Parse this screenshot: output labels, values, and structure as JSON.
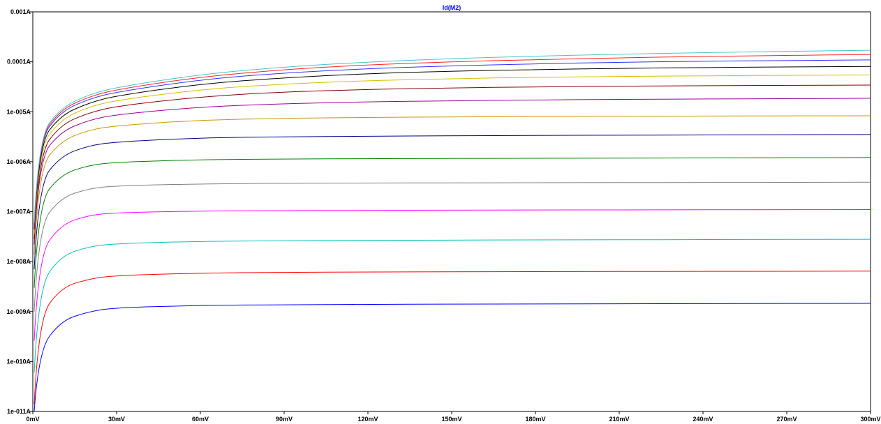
{
  "chart_data": {
    "type": "line",
    "title": "Id(M2)",
    "title_color": "#0000ff",
    "xlabel": "",
    "ylabel": "",
    "xlim": [
      0,
      0.3
    ],
    "ylim": [
      1e-11,
      0.001
    ],
    "yscale": "log",
    "grid": false,
    "legend": "none",
    "x_ticks": [
      {
        "v": 0,
        "label": "0mV"
      },
      {
        "v": 0.03,
        "label": "30mV"
      },
      {
        "v": 0.06,
        "label": "60mV"
      },
      {
        "v": 0.09,
        "label": "90mV"
      },
      {
        "v": 0.12,
        "label": "120mV"
      },
      {
        "v": 0.15,
        "label": "150mV"
      },
      {
        "v": 0.18,
        "label": "180mV"
      },
      {
        "v": 0.21,
        "label": "210mV"
      },
      {
        "v": 0.24,
        "label": "240mV"
      },
      {
        "v": 0.27,
        "label": "270mV"
      },
      {
        "v": 0.3,
        "label": "300mV"
      }
    ],
    "y_ticks": [
      {
        "v": 0.001,
        "label": "0.001A"
      },
      {
        "v": 0.0001,
        "label": "0.0001A"
      },
      {
        "v": 1e-05,
        "label": "1e-005A"
      },
      {
        "v": 1e-06,
        "label": "1e-006A"
      },
      {
        "v": 1e-07,
        "label": "1e-007A"
      },
      {
        "v": 1e-08,
        "label": "1e-008A"
      },
      {
        "v": 1e-09,
        "label": "1e-009A"
      },
      {
        "v": 1e-10,
        "label": "1e-010A"
      },
      {
        "v": 1e-11,
        "label": "1e-011A"
      }
    ],
    "x": [
      0.002,
      0.01,
      0.02,
      0.03,
      0.06,
      0.09,
      0.12,
      0.15,
      0.18,
      0.21,
      0.24,
      0.27,
      0.3
    ],
    "series": [
      {
        "color": "#0000ff",
        "values": [
          1.6e-10,
          6.5e-10,
          1e-09,
          1.2e-09,
          1.33e-09,
          1.37e-09,
          1.39e-09,
          1.41e-09,
          1.42e-09,
          1.43e-09,
          1.44e-09,
          1.45e-09,
          1.46e-09
        ]
      },
      {
        "color": "#ff0000",
        "values": [
          7e-10,
          3e-09,
          4.5e-09,
          5.3e-09,
          5.9e-09,
          6.1e-09,
          6.2e-09,
          6.25e-09,
          6.3e-09,
          6.35e-09,
          6.38e-09,
          6.4e-09,
          6.45e-09
        ]
      },
      {
        "color": "#00c0c0",
        "values": [
          3e-09,
          1.3e-08,
          2e-08,
          2.3e-08,
          2.55e-08,
          2.62e-08,
          2.66e-08,
          2.7e-08,
          2.72e-08,
          2.74e-08,
          2.76e-08,
          2.78e-08,
          2.8e-08
        ]
      },
      {
        "color": "#ff00ff",
        "values": [
          1.3e-08,
          5.5e-08,
          8.5e-08,
          9.6e-08,
          1.03e-07,
          1.05e-07,
          1.06e-07,
          1.07e-07,
          1.08e-07,
          1.085e-07,
          1.09e-07,
          1.095e-07,
          1.1e-07
        ]
      },
      {
        "color": "#808080",
        "values": [
          5e-08,
          1.9e-07,
          2.9e-07,
          3.3e-07,
          3.6e-07,
          3.7e-07,
          3.75e-07,
          3.78e-07,
          3.8e-07,
          3.82e-07,
          3.84e-07,
          3.86e-07,
          3.88e-07
        ]
      },
      {
        "color": "#008000",
        "values": [
          1.5e-07,
          5.5e-07,
          8.5e-07,
          9.8e-07,
          1.1e-06,
          1.13e-06,
          1.15e-06,
          1.16e-06,
          1.17e-06,
          1.18e-06,
          1.19e-06,
          1.2e-06,
          1.21e-06
        ]
      },
      {
        "color": "#00008b",
        "values": [
          3.5e-07,
          1.3e-06,
          2.1e-06,
          2.5e-06,
          3e-06,
          3.15e-06,
          3.25e-06,
          3.3e-06,
          3.35e-06,
          3.4e-06,
          3.43e-06,
          3.47e-06,
          3.5e-06
        ]
      },
      {
        "color": "#c89600",
        "values": [
          7e-07,
          2.6e-06,
          4.3e-06,
          5.3e-06,
          6.8e-06,
          7.4e-06,
          7.7e-06,
          7.9e-06,
          8e-06,
          8.1e-06,
          8.2e-06,
          8.25e-06,
          8.3e-06
        ]
      },
      {
        "color": "#990099",
        "values": [
          1.1e-06,
          4e-06,
          6.8e-06,
          8.8e-06,
          1.25e-05,
          1.45e-05,
          1.58e-05,
          1.66e-05,
          1.72e-05,
          1.77e-05,
          1.8e-05,
          1.83e-05,
          1.86e-05
        ]
      },
      {
        "color": "#8b0000",
        "values": [
          1.4e-06,
          5.5e-06,
          9.5e-06,
          1.3e-05,
          2e-05,
          2.5e-05,
          2.8e-05,
          3e-05,
          3.15e-05,
          3.25e-05,
          3.33e-05,
          3.38e-05,
          3.42e-05
        ]
      },
      {
        "color": "#d4c000",
        "values": [
          1.8e-06,
          7e-06,
          1.25e-05,
          1.7e-05,
          2.8e-05,
          3.6e-05,
          4.2e-05,
          4.6e-05,
          4.9e-05,
          5.1e-05,
          5.25e-05,
          5.35e-05,
          5.45e-05
        ]
      },
      {
        "color": "#000000",
        "values": [
          2.2e-06,
          8.5e-06,
          1.5e-05,
          2.1e-05,
          3.6e-05,
          4.8e-05,
          5.8e-05,
          6.5e-05,
          7e-05,
          7.4e-05,
          7.7e-05,
          7.9e-05,
          8.1e-05
        ]
      },
      {
        "color": "#3030ff",
        "values": [
          2.6e-06,
          1e-05,
          1.8e-05,
          2.5e-05,
          4.4e-05,
          6e-05,
          7.3e-05,
          8.3e-05,
          9.1e-05,
          9.8e-05,
          0.000103,
          0.000106,
          0.000109
        ]
      },
      {
        "color": "#ff2020",
        "values": [
          2.8e-06,
          1.1e-05,
          2e-05,
          2.8e-05,
          5e-05,
          7e-05,
          8.7e-05,
          0.0001,
          0.000111,
          0.00012,
          0.000128,
          0.000134,
          0.00014
        ]
      },
      {
        "color": "#40c8c8",
        "values": [
          3e-06,
          1.2e-05,
          2.2e-05,
          3.1e-05,
          5.6e-05,
          7.9e-05,
          9.9e-05,
          0.000116,
          0.00013,
          0.000142,
          0.000153,
          0.000162,
          0.00017
        ]
      }
    ]
  }
}
